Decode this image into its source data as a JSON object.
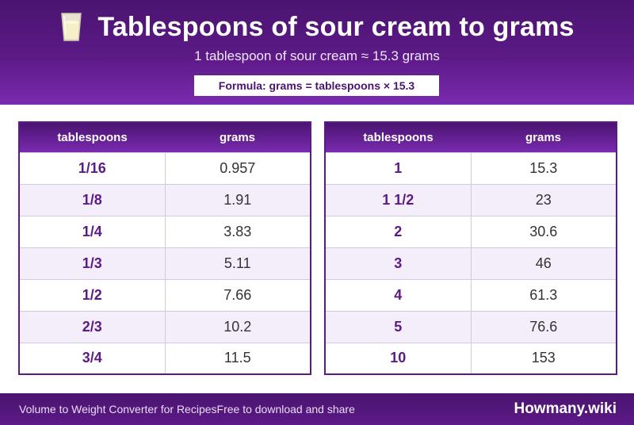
{
  "header": {
    "title": "Tablespoons of sour cream to grams",
    "subtitle": "1 tablespoon of sour cream ≈ 15.3 grams",
    "formula": "Formula: grams = tablespoons × 15.3",
    "icon": "glass-of-milk-icon"
  },
  "tables": [
    {
      "col_tbsp": "tablespoons",
      "col_grams": "grams",
      "rows": [
        {
          "tbsp": "1/16",
          "grams": "0.957"
        },
        {
          "tbsp": "1/8",
          "grams": "1.91"
        },
        {
          "tbsp": "1/4",
          "grams": "3.83"
        },
        {
          "tbsp": "1/3",
          "grams": "5.11"
        },
        {
          "tbsp": "1/2",
          "grams": "7.66"
        },
        {
          "tbsp": "2/3",
          "grams": "10.2"
        },
        {
          "tbsp": "3/4",
          "grams": "11.5"
        }
      ]
    },
    {
      "col_tbsp": "tablespoons",
      "col_grams": "grams",
      "rows": [
        {
          "tbsp": "1",
          "grams": "15.3"
        },
        {
          "tbsp": "1 1/2",
          "grams": "23"
        },
        {
          "tbsp": "2",
          "grams": "30.6"
        },
        {
          "tbsp": "3",
          "grams": "46"
        },
        {
          "tbsp": "4",
          "grams": "61.3"
        },
        {
          "tbsp": "5",
          "grams": "76.6"
        },
        {
          "tbsp": "10",
          "grams": "153"
        }
      ]
    }
  ],
  "footer": {
    "left_text": "Volume to Weight Converter for RecipesFree to download and share",
    "brand": "Howmany.wiki"
  },
  "colors": {
    "primary": "#5c1a86",
    "dark": "#4a1470",
    "stripe": "#f4eefa"
  }
}
